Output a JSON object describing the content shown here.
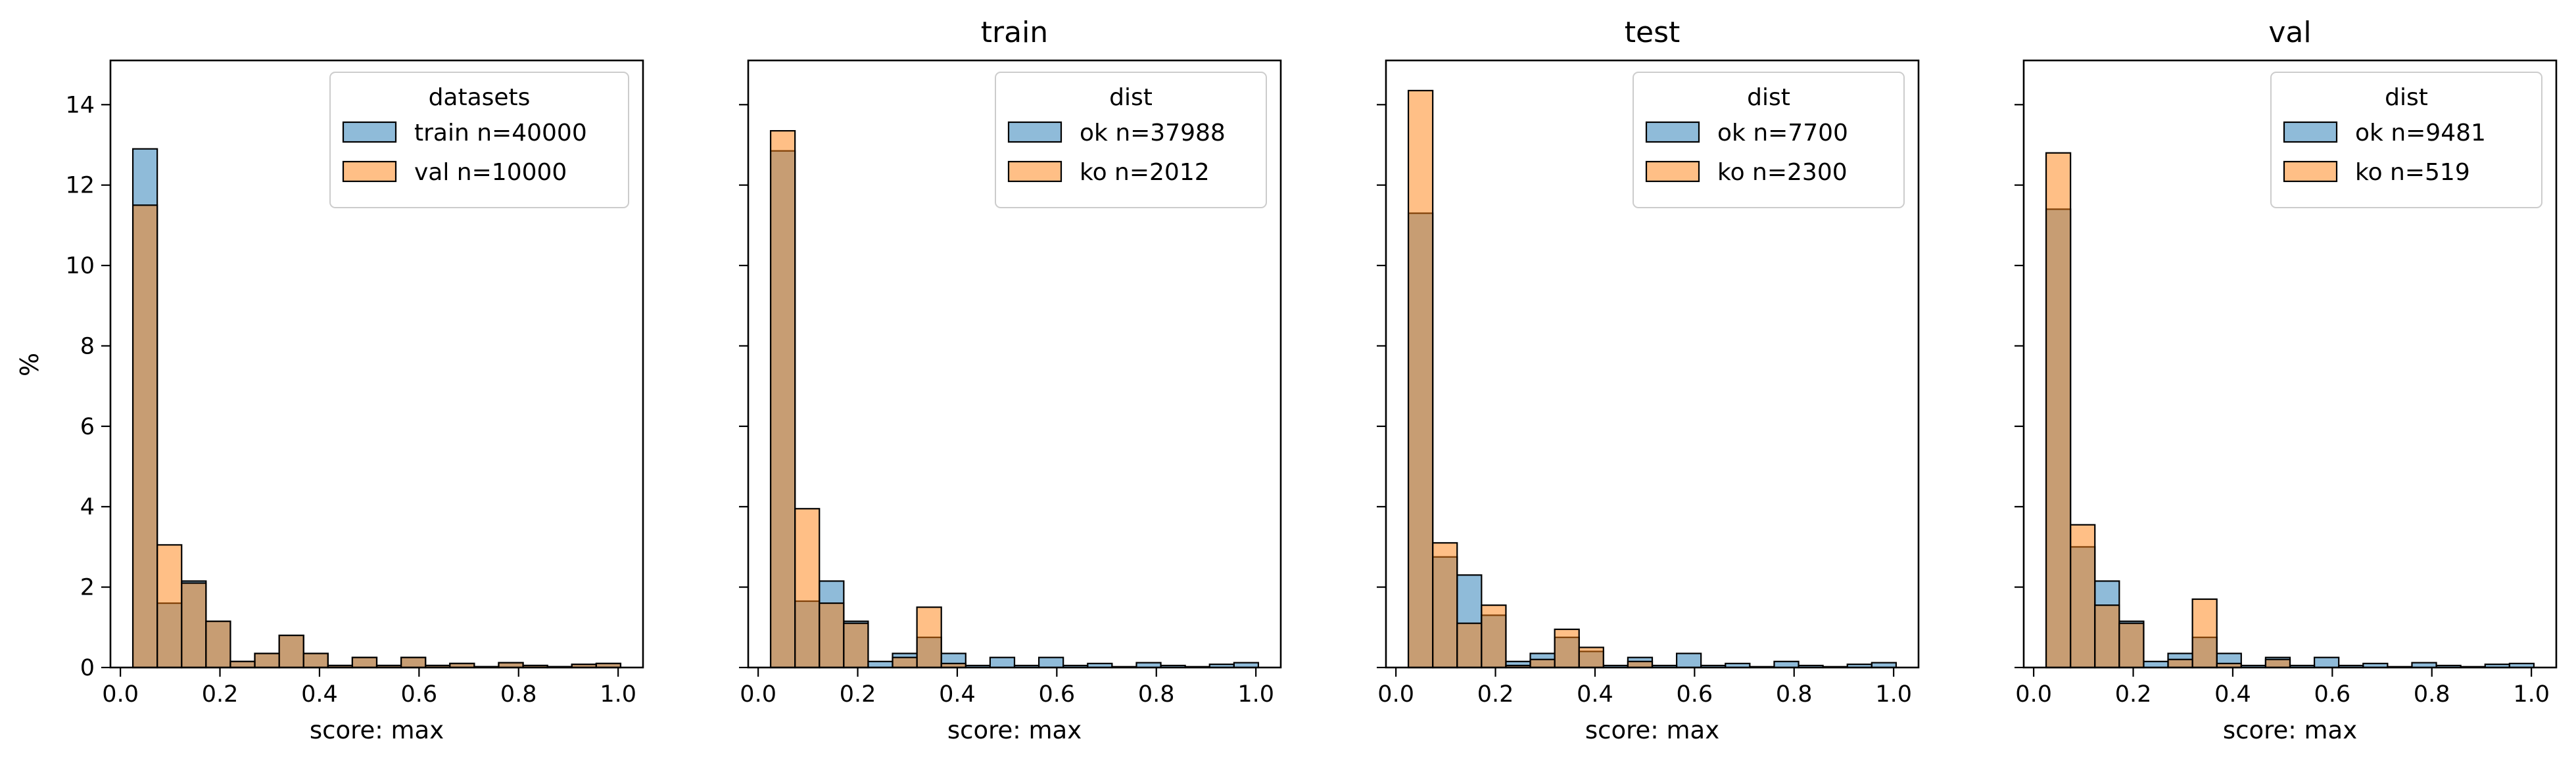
{
  "figure": {
    "ylabel": "%",
    "colors": {
      "series_a": "#1f77b4",
      "series_b": "#ff7f0e",
      "edge": "#000000"
    }
  },
  "chart_data": [
    {
      "type": "bar",
      "title": "",
      "xlabel": "score: max",
      "ylabel": "%",
      "xlim": [
        -0.02,
        1.05
      ],
      "ylim": [
        0,
        15.1
      ],
      "xticks": [
        "0.0",
        "0.2",
        "0.4",
        "0.6",
        "0.8",
        "1.0"
      ],
      "yticks": [
        "0",
        "2",
        "4",
        "6",
        "8",
        "10",
        "12",
        "14"
      ],
      "legend": {
        "title": "datasets",
        "placement": "top-right"
      },
      "bin_edges": [
        0.025,
        0.074,
        0.123,
        0.172,
        0.221,
        0.27,
        0.319,
        0.368,
        0.417,
        0.466,
        0.515,
        0.564,
        0.613,
        0.662,
        0.711,
        0.76,
        0.809,
        0.858,
        0.907,
        0.956,
        1.005
      ],
      "series": [
        {
          "name": "train n=40000",
          "values": [
            12.9,
            1.6,
            2.15,
            1.15,
            0.15,
            0.35,
            0.8,
            0.35,
            0.05,
            0.25,
            0.05,
            0.25,
            0.05,
            0.1,
            0.02,
            0.12,
            0.05,
            0.02,
            0.08,
            0.1
          ]
        },
        {
          "name": "val n=10000",
          "values": [
            11.5,
            3.05,
            2.1,
            1.15,
            0.15,
            0.35,
            0.8,
            0.35,
            0.05,
            0.25,
            0.05,
            0.25,
            0.05,
            0.1,
            0.02,
            0.12,
            0.05,
            0.02,
            0.08,
            0.1
          ]
        }
      ]
    },
    {
      "type": "bar",
      "title": "train",
      "xlabel": "score: max",
      "ylabel": "",
      "xlim": [
        -0.02,
        1.05
      ],
      "ylim": [
        0,
        15.1
      ],
      "xticks": [
        "0.0",
        "0.2",
        "0.4",
        "0.6",
        "0.8",
        "1.0"
      ],
      "yticks": [],
      "legend": {
        "title": "dist",
        "placement": "top-right"
      },
      "bin_edges": [
        0.025,
        0.074,
        0.123,
        0.172,
        0.221,
        0.27,
        0.319,
        0.368,
        0.417,
        0.466,
        0.515,
        0.564,
        0.613,
        0.662,
        0.711,
        0.76,
        0.809,
        0.858,
        0.907,
        0.956,
        1.005
      ],
      "series": [
        {
          "name": "ok n=37988",
          "values": [
            12.85,
            1.65,
            2.15,
            1.15,
            0.15,
            0.35,
            0.75,
            0.35,
            0.05,
            0.25,
            0.05,
            0.25,
            0.05,
            0.1,
            0.02,
            0.12,
            0.05,
            0.02,
            0.08,
            0.12
          ]
        },
        {
          "name": "ko n=2012",
          "values": [
            13.35,
            3.95,
            1.6,
            1.1,
            0.0,
            0.25,
            1.5,
            0.1,
            0.0,
            0.0,
            0.0,
            0.0,
            0.0,
            0.0,
            0.0,
            0.0,
            0.0,
            0.0,
            0.0,
            0.0
          ]
        }
      ]
    },
    {
      "type": "bar",
      "title": "test",
      "xlabel": "score: max",
      "ylabel": "",
      "xlim": [
        -0.02,
        1.05
      ],
      "ylim": [
        0,
        15.1
      ],
      "xticks": [
        "0.0",
        "0.2",
        "0.4",
        "0.6",
        "0.8",
        "1.0"
      ],
      "yticks": [],
      "legend": {
        "title": "dist",
        "placement": "top-right"
      },
      "bin_edges": [
        0.025,
        0.074,
        0.123,
        0.172,
        0.221,
        0.27,
        0.319,
        0.368,
        0.417,
        0.466,
        0.515,
        0.564,
        0.613,
        0.662,
        0.711,
        0.76,
        0.809,
        0.858,
        0.907,
        0.956,
        1.005
      ],
      "series": [
        {
          "name": "ok n=7700",
          "values": [
            11.3,
            2.75,
            2.3,
            1.3,
            0.15,
            0.35,
            0.75,
            0.4,
            0.05,
            0.25,
            0.05,
            0.35,
            0.05,
            0.1,
            0.02,
            0.15,
            0.05,
            0.02,
            0.08,
            0.12
          ]
        },
        {
          "name": "ko n=2300",
          "values": [
            14.35,
            3.1,
            1.1,
            1.55,
            0.05,
            0.2,
            0.95,
            0.5,
            0.0,
            0.15,
            0.0,
            0.0,
            0.0,
            0.0,
            0.0,
            0.0,
            0.0,
            0.0,
            0.0,
            0.0
          ]
        }
      ]
    },
    {
      "type": "bar",
      "title": "val",
      "xlabel": "score: max",
      "ylabel": "",
      "xlim": [
        -0.02,
        1.05
      ],
      "ylim": [
        0,
        15.1
      ],
      "xticks": [
        "0.0",
        "0.2",
        "0.4",
        "0.6",
        "0.8",
        "1.0"
      ],
      "yticks": [],
      "legend": {
        "title": "dist",
        "placement": "top-right"
      },
      "bin_edges": [
        0.025,
        0.074,
        0.123,
        0.172,
        0.221,
        0.27,
        0.319,
        0.368,
        0.417,
        0.466,
        0.515,
        0.564,
        0.613,
        0.662,
        0.711,
        0.76,
        0.809,
        0.858,
        0.907,
        0.956,
        1.005
      ],
      "series": [
        {
          "name": "ok n=9481",
          "values": [
            11.4,
            3.0,
            2.15,
            1.15,
            0.15,
            0.35,
            0.75,
            0.35,
            0.05,
            0.25,
            0.05,
            0.25,
            0.05,
            0.1,
            0.02,
            0.12,
            0.05,
            0.02,
            0.08,
            0.1
          ]
        },
        {
          "name": "ko n=519",
          "values": [
            12.8,
            3.55,
            1.55,
            1.1,
            0.0,
            0.2,
            1.7,
            0.1,
            0.0,
            0.2,
            0.0,
            0.0,
            0.0,
            0.0,
            0.0,
            0.0,
            0.0,
            0.0,
            0.0,
            0.0
          ]
        }
      ]
    }
  ]
}
